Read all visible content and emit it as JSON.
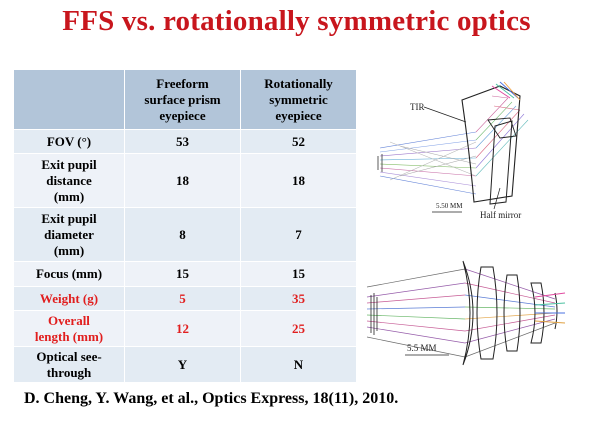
{
  "title": "FFS vs. rotationally symmetric optics",
  "table": {
    "header": [
      "",
      "Freeform\nsurface prism\neyepiece",
      "Rotationally\nsymmetric\neyepiece"
    ],
    "rows": [
      {
        "label": "FOV (°)",
        "ffs": "53",
        "rot": "52",
        "red": false
      },
      {
        "label": "Exit pupil\ndistance\n(mm)",
        "ffs": "18",
        "rot": "18",
        "red": false
      },
      {
        "label": "Exit pupil\ndiameter\n(mm)",
        "ffs": "8",
        "rot": "7",
        "red": false
      },
      {
        "label": "Focus (mm)",
        "ffs": "15",
        "rot": "15",
        "red": false
      },
      {
        "label": "Weight (g)",
        "ffs": "5",
        "rot": "35",
        "red": true
      },
      {
        "label": "Overall\nlength (mm)",
        "ffs": "12",
        "rot": "25",
        "red": true
      },
      {
        "label": "Optical see-\nthrough",
        "ffs": "Y",
        "rot": "N",
        "red": false
      }
    ]
  },
  "citation": "D. Cheng, Y. Wang, et al., Optics Express, 18(11), 2010.",
  "figure_top": {
    "tir_label": "TIR",
    "half_mirror_label": "Half mirror",
    "scale_label": "5.50 MM"
  },
  "figure_bottom": {
    "scale_label": "5.5 MM"
  },
  "colors": {
    "title": "#c8161d",
    "highlight": "#e11e1e",
    "header_bg": "#b2c5d9",
    "row_bg": "#e3ebf3"
  }
}
